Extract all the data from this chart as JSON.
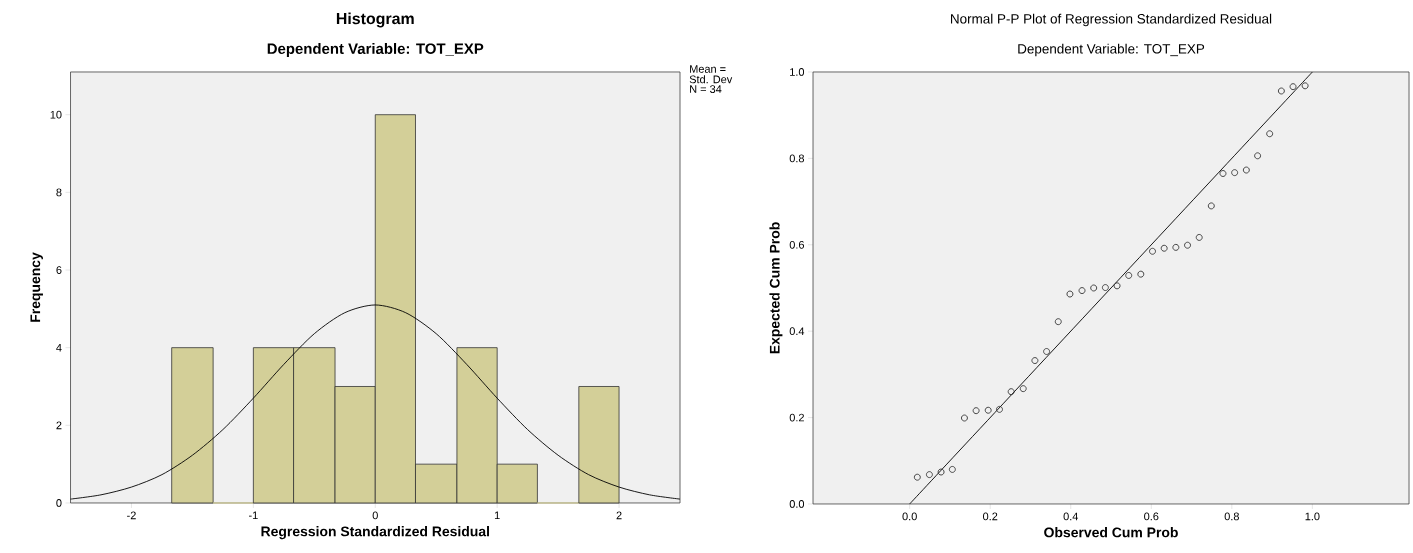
{
  "chart_data": [
    {
      "type": "histogram",
      "title": "Histogram",
      "subtitle": "Dependent Variable: TOT_EXP",
      "xlabel": "Regression Standardized Residual",
      "ylabel": "Frequency",
      "bins": [
        -1.67,
        -1.33,
        -1,
        -0.67,
        -0.33,
        0,
        0.33,
        0.67,
        1,
        1.33,
        1.67,
        2
      ],
      "values": [
        4,
        0,
        4,
        4,
        3,
        10,
        1,
        4,
        1,
        0,
        3
      ],
      "color": "#d3cf98",
      "series": [
        {
          "type": "line",
          "color": "#000000",
          "x": [
            -2.5,
            -2.25,
            -2,
            -1.75,
            -1.5,
            -1.25,
            -1,
            -0.75,
            -0.5,
            -0.25,
            0,
            0.25,
            0.5,
            0.75,
            1,
            1.25,
            1.5,
            1.75,
            2,
            2.25,
            2.5
          ],
          "values": [
            0.1,
            0.21,
            0.41,
            0.73,
            1.23,
            1.89,
            2.7,
            3.57,
            4.36,
            4.9,
            5.1,
            4.9,
            4.36,
            3.57,
            2.7,
            1.89,
            1.23,
            0.73,
            0.41,
            0.21,
            0.1
          ]
        }
      ],
      "xlim": [
        -2.5,
        2.5
      ],
      "ylim": [
        0,
        11.1
      ],
      "xticks": [
        -2,
        -1,
        0,
        1,
        2
      ],
      "yticks": [
        0,
        2,
        4,
        6,
        8,
        10
      ],
      "annotations": [
        "Mean =",
        "Std. Dev",
        "N = 34"
      ]
    },
    {
      "type": "scatter",
      "title": "Normal P-P Plot of Regression Standardized Residual",
      "subtitle": "Dependent Variable: TOT_EXP",
      "xlabel": "Observed Cum Prob",
      "ylabel": "Expected Cum Prob",
      "series": [
        {
          "type": "scatter",
          "color": "#333333",
          "marker": "circle",
          "x": [
            0.019,
            0.049,
            0.078,
            0.106,
            0.136,
            0.165,
            0.195,
            0.223,
            0.252,
            0.282,
            0.311,
            0.34,
            0.369,
            0.398,
            0.428,
            0.457,
            0.486,
            0.515,
            0.544,
            0.574,
            0.603,
            0.632,
            0.661,
            0.69,
            0.719,
            0.749,
            0.778,
            0.807,
            0.836,
            0.864,
            0.894,
            0.923,
            0.952,
            0.982
          ],
          "values": [
            0.062,
            0.068,
            0.074,
            0.08,
            0.199,
            0.216,
            0.217,
            0.219,
            0.26,
            0.267,
            0.332,
            0.353,
            0.422,
            0.486,
            0.494,
            0.5,
            0.501,
            0.505,
            0.529,
            0.532,
            0.585,
            0.592,
            0.594,
            0.599,
            0.617,
            0.69,
            0.765,
            0.767,
            0.773,
            0.806,
            0.857,
            0.956,
            0.966,
            0.968
          ]
        },
        {
          "type": "line",
          "color": "#000000",
          "x": [
            0,
            1
          ],
          "values": [
            0,
            1
          ]
        }
      ],
      "xlim": [
        -0.24,
        1.24
      ],
      "ylim": [
        0,
        1
      ],
      "xticks": [
        {
          "value": 0,
          "label": "0.0"
        },
        {
          "value": 0.2,
          "label": "0.2"
        },
        {
          "value": 0.4,
          "label": "0.4"
        },
        {
          "value": 0.6,
          "label": "0.6"
        },
        {
          "value": 0.8,
          "label": "0.8"
        },
        {
          "value": 1,
          "label": "1.0"
        }
      ],
      "yticks": [
        {
          "value": 0,
          "label": "0.0"
        },
        {
          "value": 0.2,
          "label": "0.2"
        },
        {
          "value": 0.4,
          "label": "0.4"
        },
        {
          "value": 0.6,
          "label": "0.6"
        },
        {
          "value": 0.8,
          "label": "0.8"
        },
        {
          "value": 1,
          "label": "1.0"
        }
      ]
    }
  ]
}
